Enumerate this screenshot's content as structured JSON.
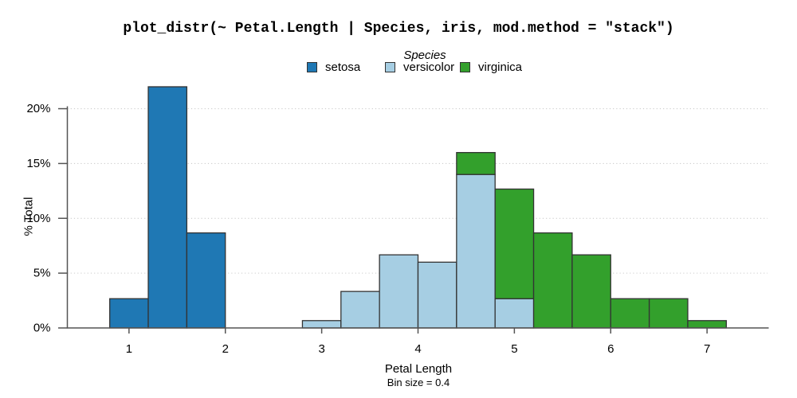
{
  "chart_data": {
    "type": "bar",
    "subtype": "stacked_histogram",
    "title": "plot_distr(~ Petal.Length | Species, iris, mod.method = \"stack\")",
    "xlabel": "Petal Length",
    "xlabel_note": "Bin size = 0.4",
    "ylabel": "% Total",
    "bin_size": 0.4,
    "legend": {
      "title": "Species",
      "position": "top",
      "entries": [
        {
          "label": "setosa",
          "color": "#1f78b4"
        },
        {
          "label": "versicolor",
          "color": "#a6cee3"
        },
        {
          "label": "virginica",
          "color": "#33a02c"
        }
      ]
    },
    "x_ticks": {
      "values": [
        1,
        2,
        3,
        4,
        5,
        6,
        7
      ],
      "labels": [
        "1",
        "2",
        "3",
        "4",
        "5",
        "6",
        "7"
      ]
    },
    "y_ticks": {
      "values": [
        0,
        5,
        10,
        15,
        20
      ],
      "labels": [
        "0%",
        "5%",
        "10%",
        "15%",
        "20%"
      ]
    },
    "xlim": [
      0.36,
      7.64
    ],
    "ylim": [
      0,
      22.9
    ],
    "grid": {
      "y_values": [
        5,
        10,
        15,
        20
      ],
      "style": "dotted"
    },
    "bins": [
      {
        "x0": 0.8,
        "x1": 1.2,
        "segments": [
          {
            "series": "setosa",
            "value": 2.67
          }
        ]
      },
      {
        "x0": 1.2,
        "x1": 1.6,
        "segments": [
          {
            "series": "setosa",
            "value": 22.0
          }
        ]
      },
      {
        "x0": 1.6,
        "x1": 2.0,
        "segments": [
          {
            "series": "setosa",
            "value": 8.67
          }
        ]
      },
      {
        "x0": 2.8,
        "x1": 3.2,
        "segments": [
          {
            "series": "versicolor",
            "value": 0.67
          }
        ]
      },
      {
        "x0": 3.2,
        "x1": 3.6,
        "segments": [
          {
            "series": "versicolor",
            "value": 3.33
          }
        ]
      },
      {
        "x0": 3.6,
        "x1": 4.0,
        "segments": [
          {
            "series": "versicolor",
            "value": 6.67
          }
        ]
      },
      {
        "x0": 4.0,
        "x1": 4.4,
        "segments": [
          {
            "series": "versicolor",
            "value": 6.0
          }
        ]
      },
      {
        "x0": 4.4,
        "x1": 4.8,
        "segments": [
          {
            "series": "versicolor",
            "value": 14.0
          },
          {
            "series": "virginica",
            "value": 2.0
          }
        ]
      },
      {
        "x0": 4.8,
        "x1": 5.2,
        "segments": [
          {
            "series": "versicolor",
            "value": 2.67
          },
          {
            "series": "virginica",
            "value": 10.0
          }
        ]
      },
      {
        "x0": 5.2,
        "x1": 5.6,
        "segments": [
          {
            "series": "virginica",
            "value": 8.67
          }
        ]
      },
      {
        "x0": 5.6,
        "x1": 6.0,
        "segments": [
          {
            "series": "virginica",
            "value": 6.67
          }
        ]
      },
      {
        "x0": 6.0,
        "x1": 6.4,
        "segments": [
          {
            "series": "virginica",
            "value": 2.67
          }
        ]
      },
      {
        "x0": 6.4,
        "x1": 6.8,
        "segments": [
          {
            "series": "virginica",
            "value": 2.67
          }
        ]
      },
      {
        "x0": 6.8,
        "x1": 7.2,
        "segments": [
          {
            "series": "virginica",
            "value": 0.67
          }
        ]
      }
    ],
    "style": {
      "bar_border_color": "#333333",
      "axis_color": "#545454",
      "grid_color": "#cccccc",
      "text_color": "#000000",
      "background": "#ffffff"
    }
  }
}
